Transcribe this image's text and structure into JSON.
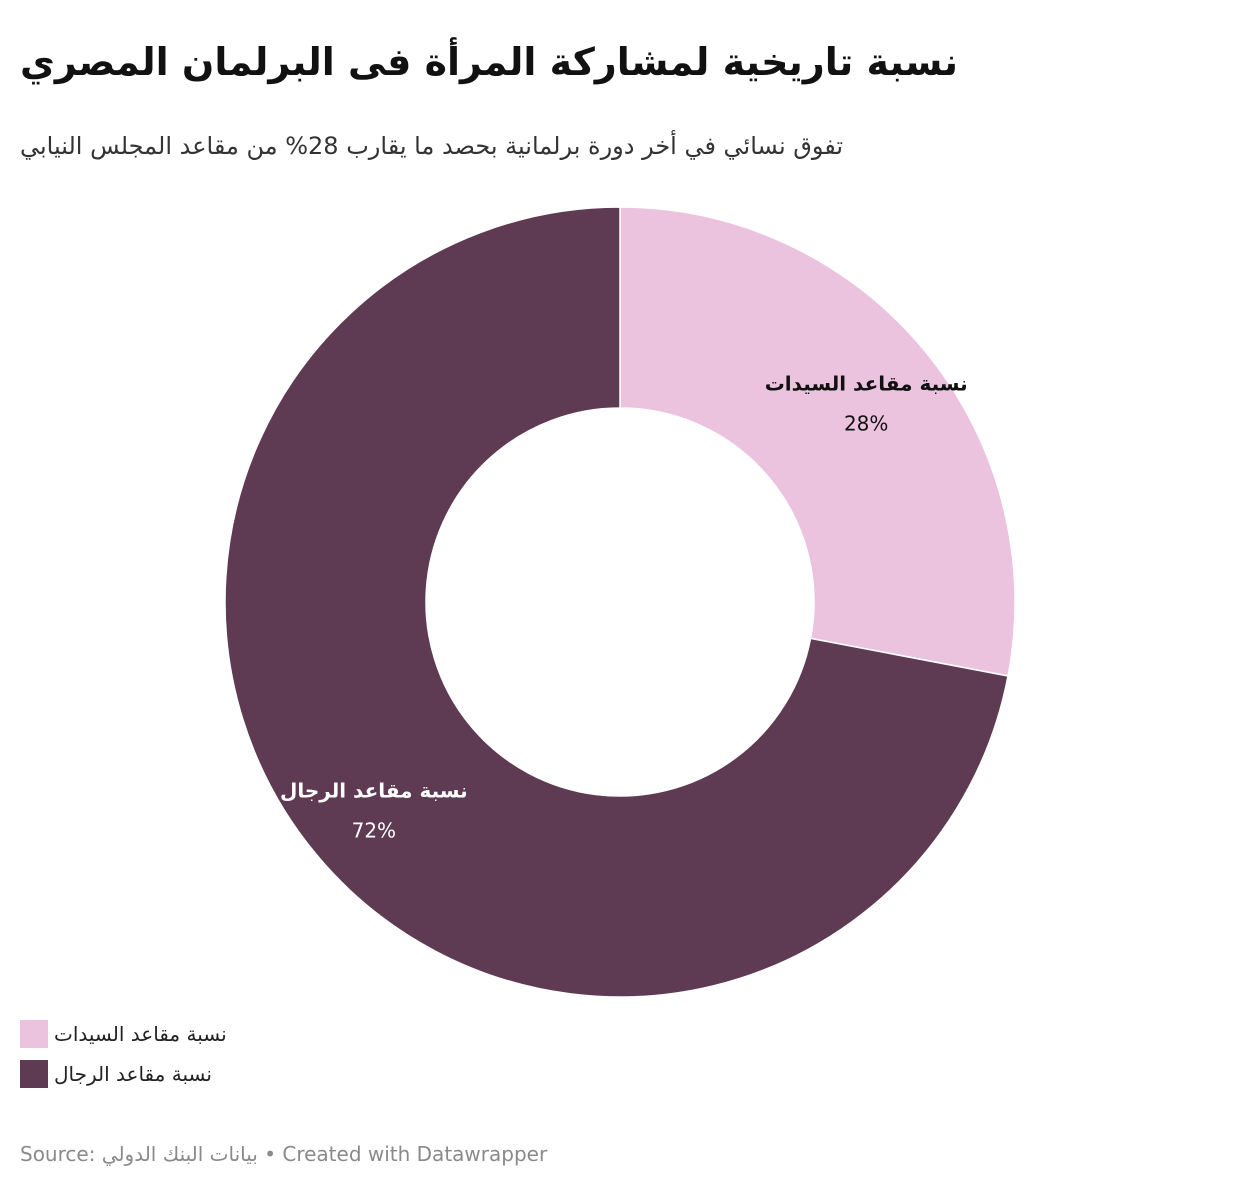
{
  "title": "نسبة تاريخية لمشاركة المرأة فى البرلمان المصري",
  "subtitle": "تفوق نسائي في أخر دورة برلمانية بحصد ما يقارب 28% من مقاعد المجلس النيابي",
  "chart_data": {
    "type": "pie",
    "variant": "donut",
    "categories": [
      "نسبة مقاعد السيدات",
      "نسبة مقاعد الرجال"
    ],
    "values": [
      28,
      72
    ],
    "value_labels": [
      "28%",
      "72%"
    ],
    "colors": [
      "#ecc3de",
      "#5f3b53"
    ],
    "label_colors": [
      "#111111",
      "#ffffff"
    ],
    "legend_position": "bottom-left"
  },
  "legend": {
    "items": [
      {
        "label": "نسبة مقاعد السيدات",
        "color": "#ecc3de"
      },
      {
        "label": "نسبة مقاعد الرجال",
        "color": "#5f3b53"
      }
    ]
  },
  "footer": {
    "source_label": "Source:",
    "source_name": "بيانات البنك الدولي",
    "separator": "•",
    "credit": "Created with Datawrapper"
  }
}
